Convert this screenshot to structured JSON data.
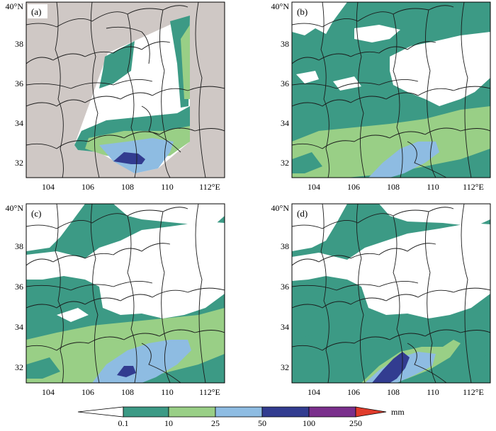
{
  "colors": {
    "background": "#ffffff",
    "masked_area": "#cfc8c5",
    "no_data": "#ffffff",
    "bin_0_1_10": "#3c9a85",
    "bin_10_25": "#99cf86",
    "bin_25_50": "#8ebce2",
    "bin_50_100": "#323c90",
    "bin_100_250": "#7a2f8c",
    "bin_250_plus": "#e03c2c",
    "boundary": "#1a1a1a"
  },
  "panels": [
    {
      "label": "(a)",
      "lat_labels": [
        "40°N",
        "38",
        "36",
        "34",
        "32"
      ],
      "lon_labels": [
        "104",
        "106",
        "108",
        "110",
        "112°E"
      ]
    },
    {
      "label": "(b)",
      "lat_labels": [
        "40°N",
        "38",
        "36",
        "34",
        "32"
      ],
      "lon_labels": [
        "104",
        "106",
        "108",
        "110",
        "112°E"
      ]
    },
    {
      "label": "(c)",
      "lat_labels": [
        "40°N",
        "38",
        "36",
        "34",
        "32"
      ],
      "lon_labels": [
        "104",
        "106",
        "108",
        "110",
        "112°E"
      ]
    },
    {
      "label": "(d)",
      "lat_labels": [
        "40°N",
        "38",
        "36",
        "34",
        "32"
      ],
      "lon_labels": [
        "104",
        "106",
        "108",
        "110",
        "112°E"
      ]
    }
  ],
  "colorbar": {
    "unit": "mm",
    "ticks": [
      "0.1",
      "10",
      "25",
      "50",
      "100",
      "250"
    ]
  }
}
